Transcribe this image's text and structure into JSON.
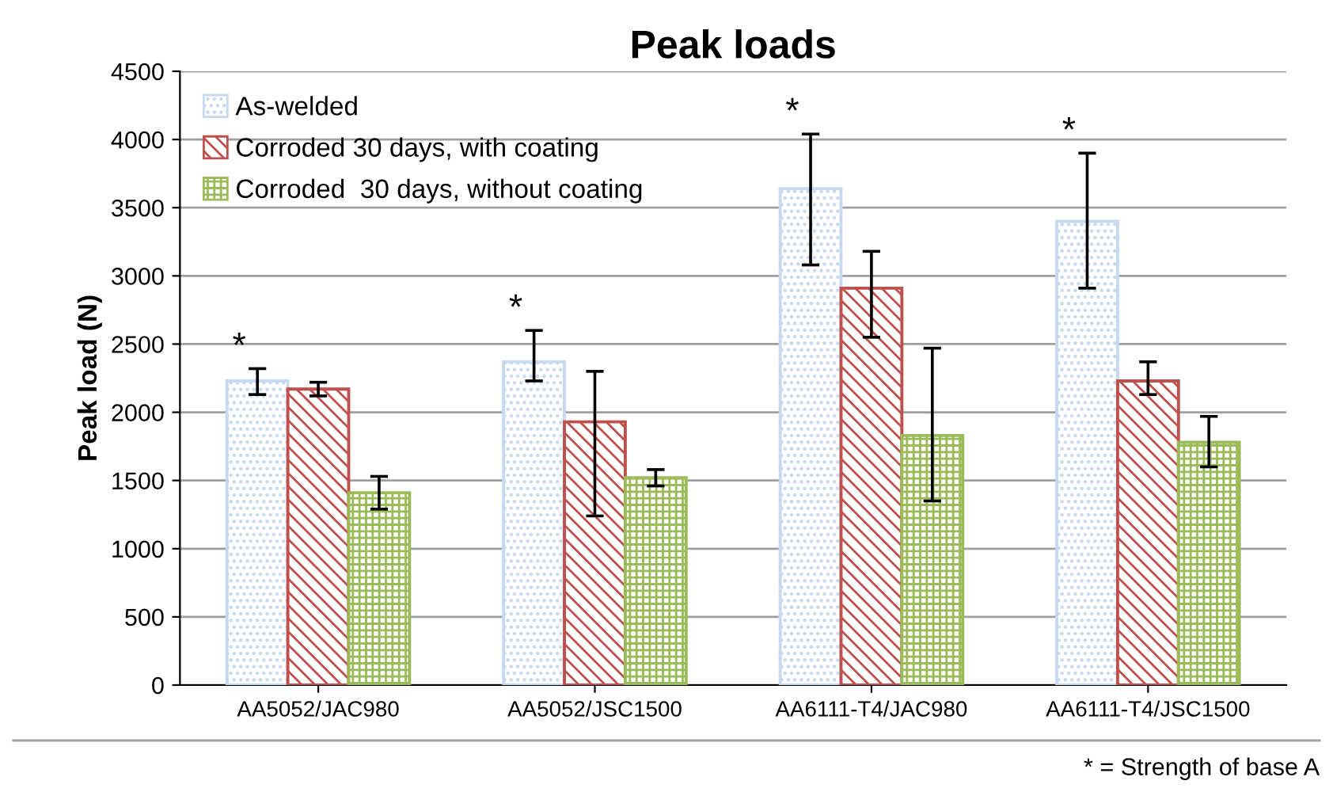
{
  "chart_data": {
    "type": "bar",
    "title": "Peak loads",
    "ylabel": "Peak load (N)",
    "categories": [
      "AA5052/JAC980",
      "AA5052/JSC1500",
      "AA6111-T4/JAC980",
      "AA6111-T4/JSC1500"
    ],
    "series": [
      {
        "name": "As-welded",
        "color": "#c6d9f1",
        "values": [
          2230,
          2370,
          3640,
          3400
        ],
        "errors": [
          [
            2130,
            2320
          ],
          [
            2230,
            2600
          ],
          [
            3080,
            4040
          ],
          [
            2910,
            3900
          ]
        ]
      },
      {
        "name": "Corroded 30 days, with coating",
        "color": "#c0504d",
        "values": [
          2170,
          1930,
          2910,
          2230
        ],
        "errors": [
          [
            2120,
            2220
          ],
          [
            1240,
            2300
          ],
          [
            2550,
            3180
          ],
          [
            2130,
            2370
          ]
        ]
      },
      {
        "name": "Corroded  30 days, without coating",
        "color": "#9bbb59",
        "values": [
          1410,
          1520,
          1830,
          1780
        ],
        "errors": [
          [
            1290,
            1530
          ],
          [
            1460,
            1580
          ],
          [
            1350,
            2470
          ],
          [
            1600,
            1970
          ]
        ]
      }
    ],
    "ylim": [
      0,
      4500
    ],
    "yticks": [
      0,
      500,
      1000,
      1500,
      2000,
      2500,
      3000,
      3500,
      4000,
      4500
    ],
    "grid": "y",
    "legend": "top left",
    "annotations": [
      "*",
      "*",
      "*",
      "*",
      "* = Strength of base A"
    ]
  }
}
